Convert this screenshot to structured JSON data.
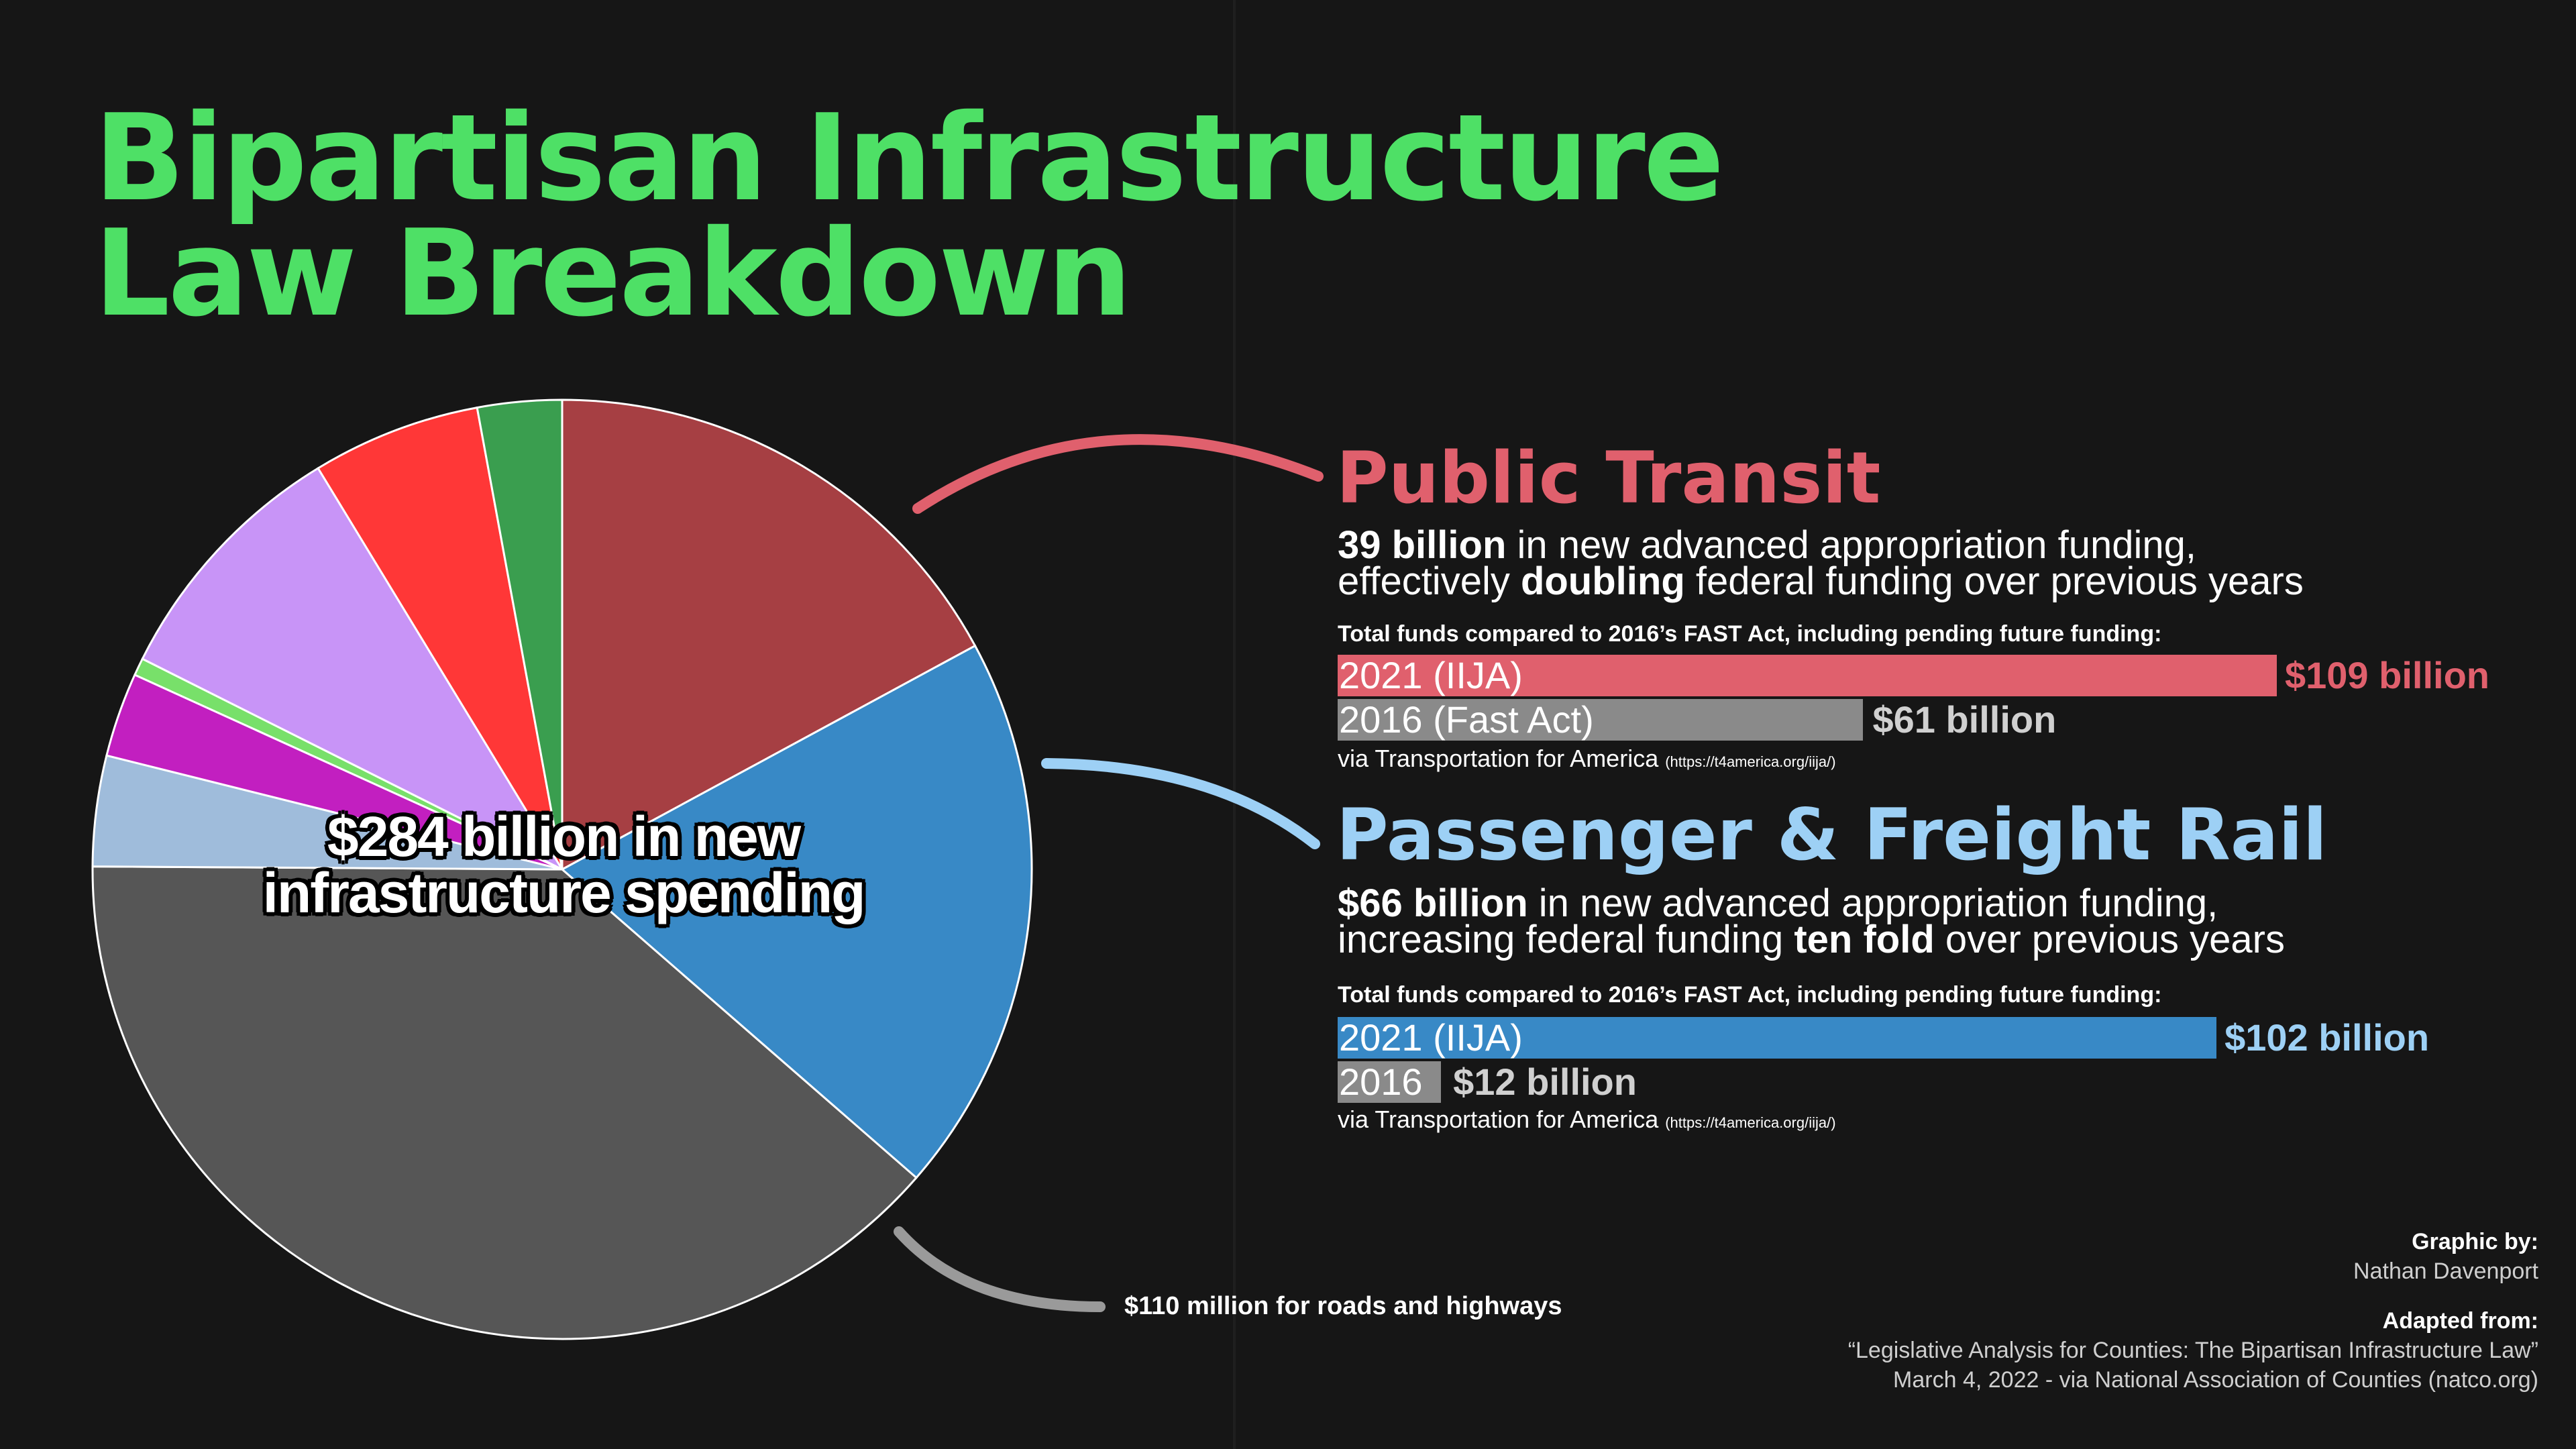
{
  "title_lines": [
    "Bipartisan Infrastructure",
    "Law Breakdown"
  ],
  "pie": {
    "center_label_lines": [
      "$284 billion in new",
      "infrastructure spending"
    ],
    "slices": [
      {
        "color": "#a63f43",
        "share": 0.171
      },
      {
        "color": "#3889c6",
        "share": 0.193
      },
      {
        "color": "#565656",
        "share": 0.387
      },
      {
        "color": "#9fbcdb",
        "share": 0.038
      },
      {
        "color": "#c21fc0",
        "share": 0.029
      },
      {
        "color": "#78e06a",
        "share": 0.006
      },
      {
        "color": "#c894f7",
        "share": 0.089
      },
      {
        "color": "#ff3737",
        "share": 0.058
      },
      {
        "color": "#3a9e4f",
        "share": 0.029
      }
    ]
  },
  "public_transit": {
    "title": "Public Transit",
    "color": "#e0606d",
    "desc_line1_bold": "39 billion",
    "desc_line1_rest": " in new advanced appropriation funding,",
    "desc_line2_pre": "effectively ",
    "desc_line2_bold": "doubling",
    "desc_line2_rest": " federal funding over previous years",
    "totals_label": "Total funds compared to 2016’s FAST Act, including pending future funding:",
    "bar_2021_label": "2021 (IIJA)",
    "bar_2021_value": "$109 billion",
    "bar_2016_label": "2016 (Fast Act)",
    "bar_2016_value": "$61 billion",
    "value_2021": 109,
    "value_2016": 61,
    "via_text": "via Transportation for America",
    "via_url": "(https://t4america.org/iija/)"
  },
  "rail": {
    "title": "Passenger & Freight Rail",
    "color": "#9dd0f5",
    "bar_color": "#3889c6",
    "desc_line1_bold": "$66 billion",
    "desc_line1_rest": " in new advanced appropriation funding,",
    "desc_line2_pre": "increasing federal funding ",
    "desc_line2_bold": "ten fold",
    "desc_line2_rest": " over previous years",
    "totals_label": "Total funds compared to 2016’s FAST Act, including pending future funding:",
    "bar_2021_label": "2021 (IIJA)",
    "bar_2021_value": "$102 billion",
    "bar_2016_label": "2016",
    "bar_2016_value": "$12 billion",
    "value_2021": 102,
    "value_2016": 12,
    "via_text": "via Transportation for America",
    "via_url": "(https://t4america.org/iija/)"
  },
  "roads_label": "$110 million for roads and highways",
  "credits": {
    "graphic_by_label": "Graphic by:",
    "author": "Nathan Davenport",
    "adapted_label": "Adapted from:",
    "source_line1": "“Legislative Analysis for Counties: The Bipartisan Infrastructure Law”",
    "source_line2": "March 4, 2022 - via National Association of Counties (natco.org)"
  },
  "chart_data": {
    "type": "bar",
    "charts": [
      {
        "title": "Public Transit",
        "categories": [
          "2021 (IIJA)",
          "2016 (Fast Act)"
        ],
        "values": [
          109,
          61
        ],
        "unit": "$ billion"
      },
      {
        "title": "Passenger & Freight Rail",
        "categories": [
          "2021 (IIJA)",
          "2016"
        ],
        "values": [
          102,
          12
        ],
        "unit": "$ billion"
      }
    ]
  }
}
